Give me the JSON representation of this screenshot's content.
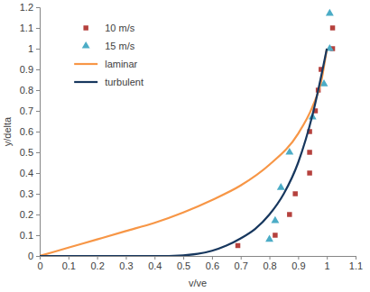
{
  "chart_data": {
    "type": "scatter",
    "x_label": "v/ve",
    "y_label": "y/delta",
    "xlim": [
      0,
      1.1
    ],
    "ylim": [
      0,
      1.2
    ],
    "xticks": [
      0,
      0.1,
      0.2,
      0.3,
      0.4,
      0.5,
      0.6,
      0.7,
      0.8,
      0.9,
      1,
      1.1
    ],
    "yticks": [
      0,
      0.1,
      0.2,
      0.3,
      0.4,
      0.5,
      0.6,
      0.7,
      0.8,
      0.9,
      1,
      1.1,
      1.2
    ],
    "grid": false,
    "legend": "upper left",
    "series": [
      {
        "name": "10 m/s",
        "type": "scatter",
        "marker": "square",
        "color": "#b5413d",
        "x": [
          0.69,
          0.82,
          0.87,
          0.89,
          0.94,
          0.94,
          0.94,
          0.96,
          0.97,
          0.98,
          1.02,
          1.02
        ],
        "values": [
          0.05,
          0.1,
          0.2,
          0.3,
          0.4,
          0.5,
          0.6,
          0.7,
          0.8,
          0.9,
          1.0,
          1.1
        ]
      },
      {
        "name": "15 m/s",
        "type": "scatter",
        "marker": "triangle",
        "color": "#4bacc6",
        "x": [
          0.8,
          0.82,
          0.84,
          0.87,
          0.95,
          0.99,
          1.01,
          1.01
        ],
        "values": [
          0.08,
          0.17,
          0.33,
          0.5,
          0.67,
          0.83,
          1.0,
          1.17
        ]
      },
      {
        "name": "laminar",
        "type": "line",
        "line_style": "solid",
        "color": "#f79646",
        "x": [
          0,
          0.1,
          0.2,
          0.3,
          0.4,
          0.5,
          0.6,
          0.7,
          0.8,
          0.9,
          0.95,
          0.98,
          1.0
        ],
        "values": [
          0,
          0.04,
          0.08,
          0.12,
          0.16,
          0.21,
          0.27,
          0.34,
          0.44,
          0.59,
          0.72,
          0.84,
          1.0
        ]
      },
      {
        "name": "turbulent",
        "type": "line",
        "line_style": "solid",
        "color": "#17375e",
        "x": [
          0,
          0.45,
          0.55,
          0.6,
          0.65,
          0.7,
          0.75,
          0.8,
          0.85,
          0.9,
          0.95,
          1.0
        ],
        "values": [
          0,
          0,
          0.01,
          0.025,
          0.05,
          0.085,
          0.13,
          0.2,
          0.3,
          0.45,
          0.68,
          1.0
        ]
      }
    ]
  }
}
